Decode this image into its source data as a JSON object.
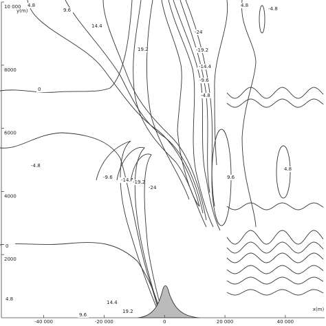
{
  "chart_data": {
    "type": "contour",
    "x_label": "x(m)",
    "y_label": "y(m)",
    "xlim": [
      -54000,
      53000
    ],
    "ylim": [
      0,
      10000
    ],
    "xticks": [
      {
        "value": -40000,
        "label": "-40 000"
      },
      {
        "value": -20000,
        "label": "-20 000"
      },
      0,
      {
        "value": 20000,
        "label": "20 000"
      },
      {
        "value": 40000,
        "label": "40 000"
      }
    ],
    "yticks": [
      2000,
      4000,
      6000,
      8000,
      {
        "value": 10000,
        "label": "10 000"
      }
    ],
    "annotations": [
      "4.8",
      "9.6",
      "14.4",
      "-24",
      "19.2",
      "-19.2",
      "-14.4",
      "-9.6",
      "-4.8",
      "0",
      "4.8",
      "-4.8",
      "-4.8",
      "-9.6",
      "-14.4",
      "-19.2",
      "-24",
      "9.6",
      "4.8",
      "0",
      "4.8",
      "9.6",
      "14.4",
      "19.2"
    ]
  }
}
